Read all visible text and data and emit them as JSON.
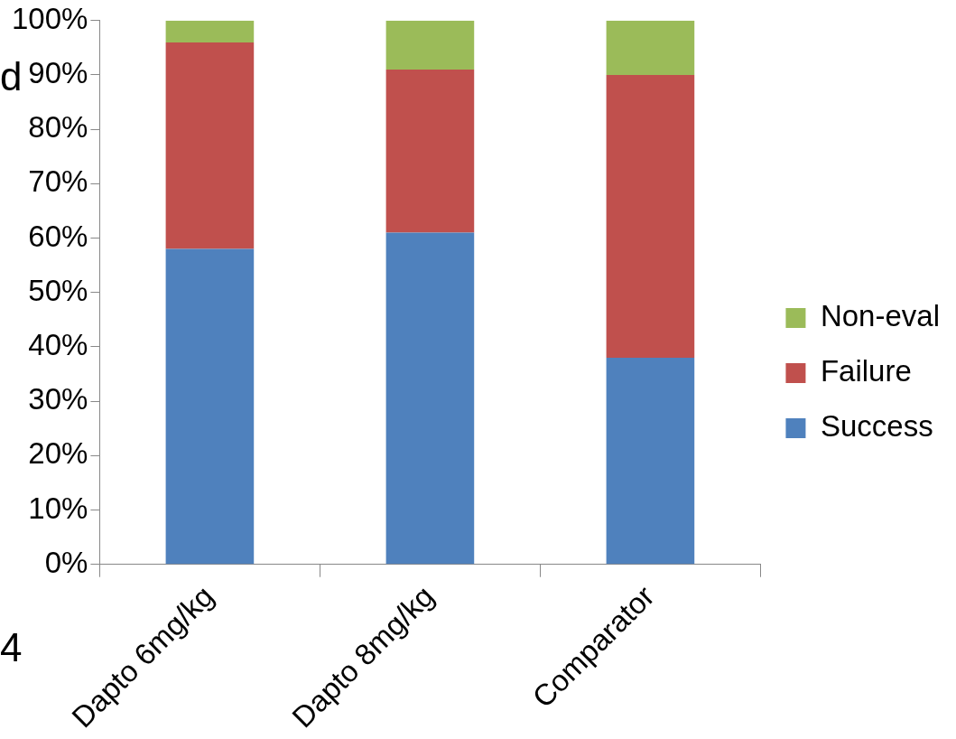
{
  "chart_data": {
    "type": "bar",
    "stacked": true,
    "categories": [
      "Dapto 6mg/kg",
      "Dapto 8mg/kg",
      "Comparator"
    ],
    "series": [
      {
        "name": "Success",
        "color": "#4f81bd",
        "values": [
          58,
          61,
          38
        ]
      },
      {
        "name": "Failure",
        "color": "#c0504d",
        "values": [
          38,
          30,
          52
        ]
      },
      {
        "name": "Non-eval",
        "color": "#9bbb59",
        "values": [
          4,
          9,
          10
        ]
      }
    ],
    "ylim": [
      0,
      100
    ],
    "yticks": [
      {
        "value": 0,
        "label": "0%"
      },
      {
        "value": 10,
        "label": "10%"
      },
      {
        "value": 20,
        "label": "20%"
      },
      {
        "value": 30,
        "label": "30%"
      },
      {
        "value": 40,
        "label": "40%"
      },
      {
        "value": 50,
        "label": "50%"
      },
      {
        "value": 60,
        "label": "60%"
      },
      {
        "value": 70,
        "label": "70%"
      },
      {
        "value": 80,
        "label": "80%"
      },
      {
        "value": 90,
        "label": "90%"
      },
      {
        "value": 100,
        "label": "100%"
      }
    ],
    "grid": false,
    "legend": "right",
    "annotations": [
      "d",
      "4"
    ]
  }
}
